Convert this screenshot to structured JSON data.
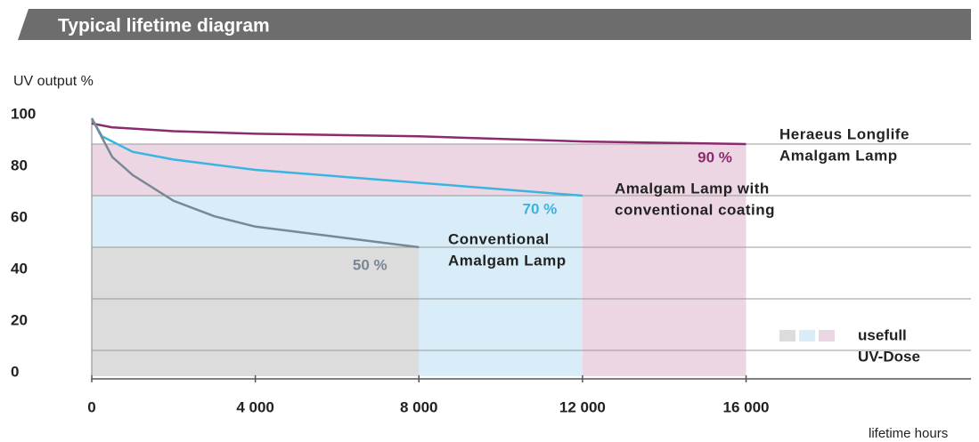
{
  "chart_data": {
    "type": "line",
    "title": "Typical lifetime diagram",
    "ylabel": "UV output %",
    "xlabel": "lifetime hours",
    "xlim": [
      0,
      21500
    ],
    "ylim": [
      0,
      100
    ],
    "xticks": [
      0,
      {
        "value": 4000,
        "label": "4 000"
      },
      {
        "value": 8000,
        "label": "8 000"
      },
      {
        "value": 12000,
        "label": "12 000"
      },
      {
        "value": 16000,
        "label": "16 000"
      }
    ],
    "yticks": [
      0,
      20,
      40,
      60,
      80,
      100
    ],
    "ygrid": [
      10,
      30,
      50,
      70,
      90
    ],
    "series": [
      {
        "name": [
          "Heraeus Longlife",
          "Amalgam Lamp"
        ],
        "color": "#8b2a6e",
        "area_color": "#ecd6e4",
        "end_label": "90 %",
        "x": [
          0,
          500,
          2000,
          4000,
          8000,
          12000,
          16000
        ],
        "values": [
          98,
          96.5,
          95,
          94,
          93,
          91,
          90
        ]
      },
      {
        "name": [
          "Amalgam Lamp with",
          "conventional coating"
        ],
        "color": "#3ab4e0",
        "area_color": "#d8edf7",
        "end_label": "70 %",
        "x": [
          0,
          250,
          1000,
          2000,
          4000,
          8000,
          12000
        ],
        "values": [
          100,
          93,
          87,
          84,
          80,
          75,
          70
        ]
      },
      {
        "name": [
          "Conventional",
          "Amalgam Lamp"
        ],
        "color": "#7a8794",
        "area_color": "#dcdcdd",
        "end_label": "50 %",
        "x": [
          0,
          500,
          1000,
          2000,
          3000,
          4000,
          6000,
          8000
        ],
        "values": [
          100,
          85,
          78,
          68,
          62,
          58,
          54,
          50
        ]
      }
    ],
    "legend": [
      "usefull",
      "UV-Dose"
    ]
  }
}
